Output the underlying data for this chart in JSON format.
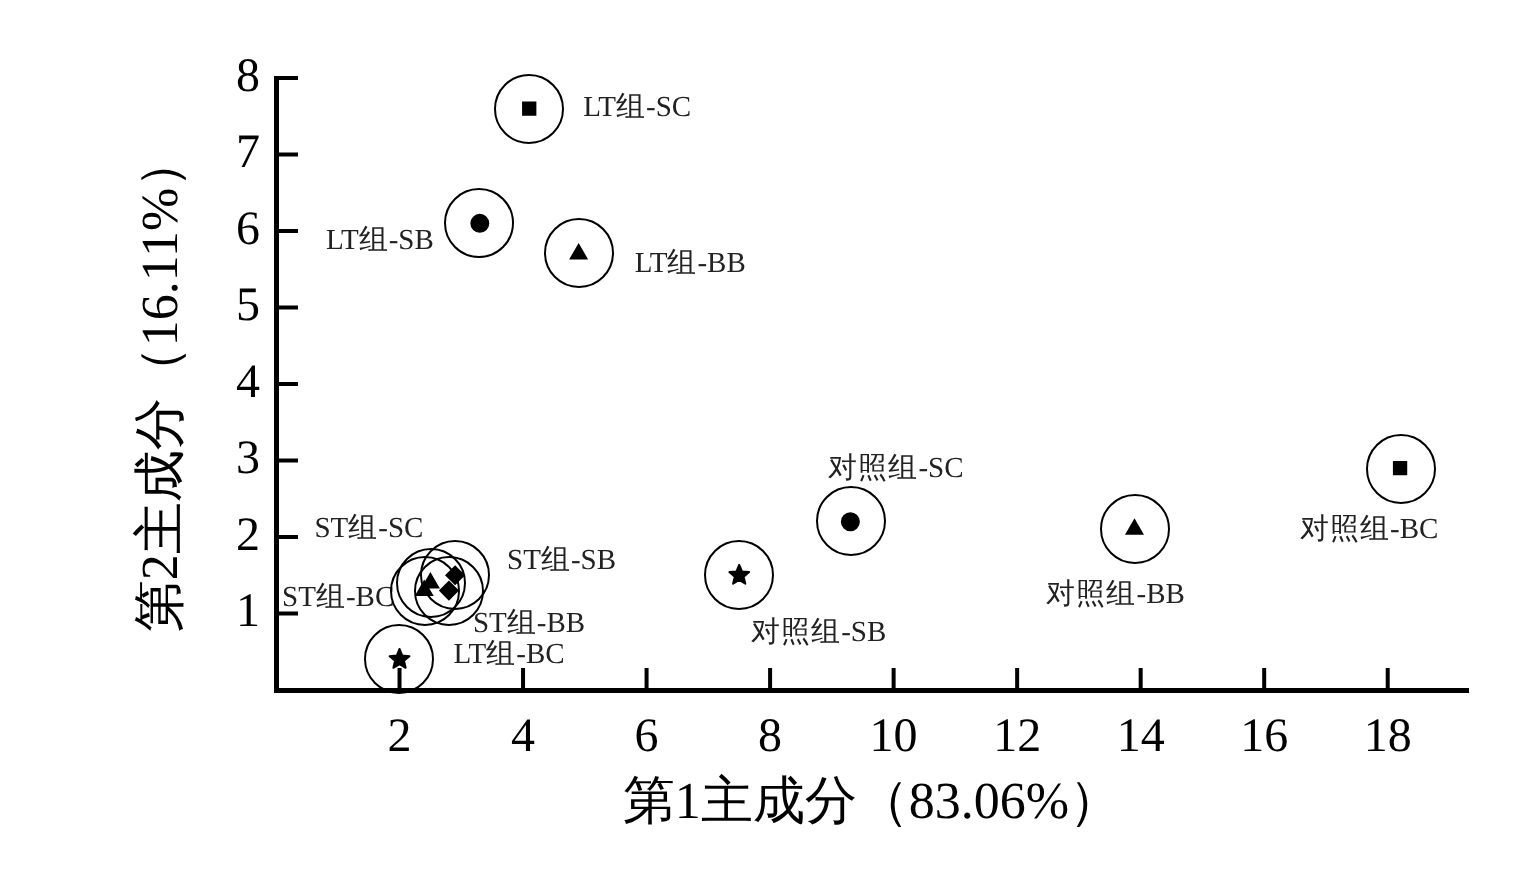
{
  "chart_data": {
    "type": "scatter",
    "xlabel": "第1主成分（83.06%）",
    "ylabel": "第2主成分（16.11%）",
    "xlim": [
      0,
      19.3
    ],
    "xticks": [
      2,
      4,
      6,
      8,
      10,
      12,
      14,
      16,
      18
    ],
    "ylim": [
      0,
      8
    ],
    "yticks": [
      1,
      2,
      3,
      4,
      5,
      6,
      7,
      8
    ],
    "legend": false,
    "grid": false,
    "series": [
      {
        "name": "LT组-SC",
        "color": "#000000",
        "marker": "square",
        "x": [
          4.1
        ],
        "values": [
          7.6
        ]
      },
      {
        "name": "LT组-SB",
        "color": "#000000",
        "marker": "circle",
        "x": [
          3.3
        ],
        "values": [
          6.1
        ]
      },
      {
        "name": "LT组-BB",
        "color": "#000000",
        "marker": "triangle",
        "x": [
          4.9
        ],
        "values": [
          5.7
        ]
      },
      {
        "name": "LT组-BC",
        "color": "#000000",
        "marker": "star",
        "x": [
          2.0
        ],
        "values": [
          0.4
        ]
      },
      {
        "name": "ST组-SC",
        "color": "#000000",
        "marker": "triangle",
        "x": [
          2.5
        ],
        "values": [
          1.4
        ]
      },
      {
        "name": "ST组-SB",
        "color": "#000000",
        "marker": "diamond",
        "x": [
          2.9
        ],
        "values": [
          1.5
        ]
      },
      {
        "name": "ST组-BC",
        "color": "#000000",
        "marker": "triangle",
        "x": [
          2.4
        ],
        "values": [
          1.3
        ]
      },
      {
        "name": "ST组-BB",
        "color": "#000000",
        "marker": "diamond",
        "x": [
          2.8
        ],
        "values": [
          1.3
        ]
      },
      {
        "name": "对照组-SB",
        "color": "#000000",
        "marker": "star",
        "x": [
          7.5
        ],
        "values": [
          1.5
        ]
      },
      {
        "name": "对照组-SC",
        "color": "#000000",
        "marker": "circle",
        "x": [
          9.3
        ],
        "values": [
          2.2
        ]
      },
      {
        "name": "对照组-BB",
        "color": "#000000",
        "marker": "triangle",
        "x": [
          13.9
        ],
        "values": [
          2.1
        ]
      },
      {
        "name": "对照组-BC",
        "color": "#000000",
        "marker": "square",
        "x": [
          18.2
        ],
        "values": [
          2.9
        ]
      }
    ]
  }
}
